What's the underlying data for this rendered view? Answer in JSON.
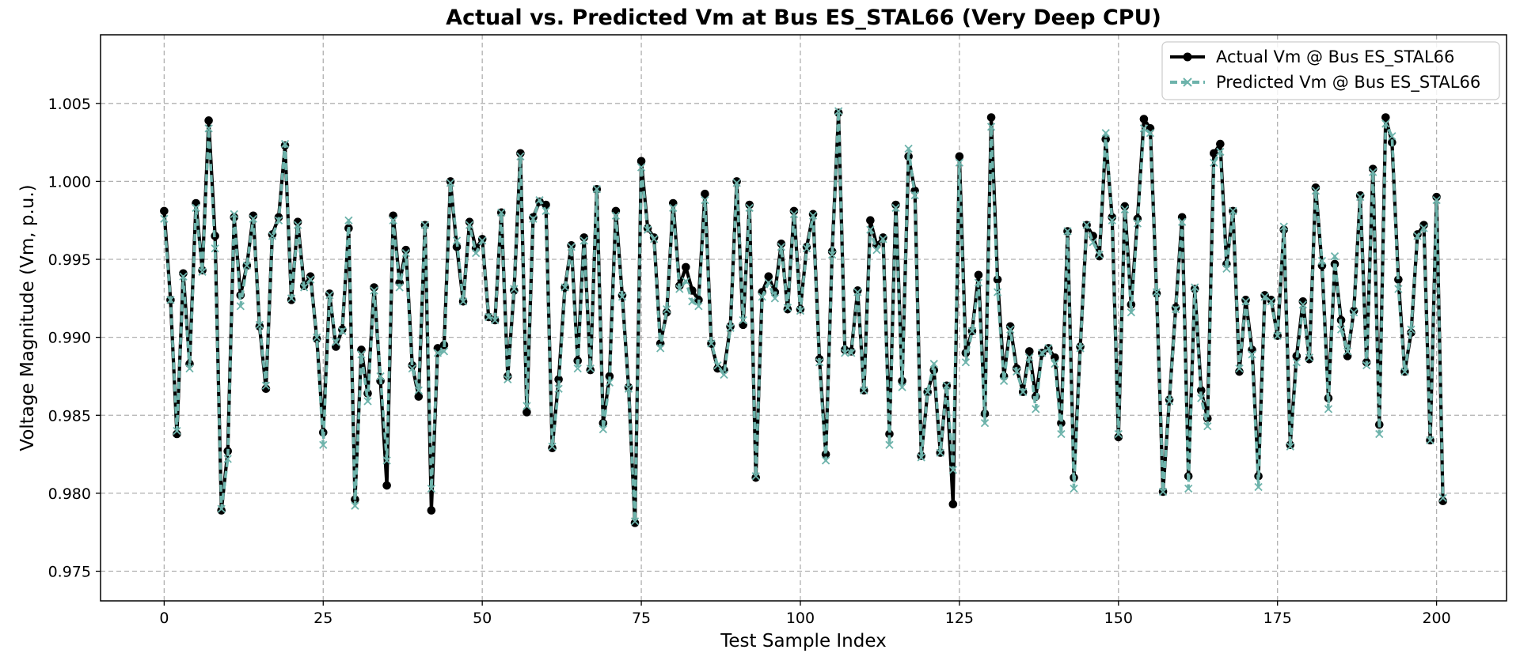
{
  "chart_data": {
    "type": "line",
    "title": "Actual vs. Predicted Vm at Bus ES_STAL66 (Very Deep CPU)",
    "xlabel": "Test Sample Index",
    "ylabel": "Voltage Magnitude (Vm, p.u.)",
    "xlim": [
      -10,
      211
    ],
    "ylim": [
      0.9731,
      1.0094
    ],
    "xticks": [
      0,
      25,
      50,
      75,
      100,
      125,
      150,
      175,
      200
    ],
    "yticks": [
      0.975,
      0.98,
      0.985,
      0.99,
      0.995,
      1.0,
      1.005
    ],
    "ytick_labels": [
      "0.975",
      "0.980",
      "0.985",
      "0.990",
      "0.995",
      "1.000",
      "1.005"
    ],
    "grid": true,
    "legend_position": "top-right",
    "series": [
      {
        "name": "Actual Vm @ Bus ES_STAL66",
        "color": "#000000",
        "marker": "circle",
        "values": [
          0.9981,
          0.9924,
          0.9838,
          0.9941,
          0.9883,
          0.9986,
          0.9943,
          1.0039,
          0.9965,
          0.9789,
          0.9827,
          0.9977,
          0.9927,
          0.9946,
          0.9978,
          0.9907,
          0.9867,
          0.9966,
          0.9977,
          1.0023,
          0.9924,
          0.9974,
          0.9933,
          0.9939,
          0.9899,
          0.9839,
          0.9928,
          0.9894,
          0.9905,
          0.997,
          0.9796,
          0.9892,
          0.9864,
          0.9932,
          0.9872,
          0.9805,
          0.9978,
          0.9935,
          0.9956,
          0.9882,
          0.9862,
          0.9972,
          0.9789,
          0.9893,
          0.9895,
          1.0,
          0.9958,
          0.9923,
          0.9974,
          0.9957,
          0.9963,
          0.9913,
          0.9911,
          0.998,
          0.9875,
          0.993,
          1.0018,
          0.9852,
          0.9977,
          0.9987,
          0.9985,
          0.9829,
          0.9873,
          0.9932,
          0.9959,
          0.9885,
          0.9964,
          0.9879,
          0.9995,
          0.9845,
          0.9875,
          0.9981,
          0.9927,
          0.9868,
          0.9781,
          1.0013,
          0.997,
          0.9964,
          0.9896,
          0.9916,
          0.9986,
          0.9933,
          0.9945,
          0.993,
          0.9924,
          0.9992,
          0.9896,
          0.988,
          0.9879,
          0.9907,
          1.0,
          0.9908,
          0.9985,
          0.981,
          0.9929,
          0.9939,
          0.9929,
          0.996,
          0.9918,
          0.9981,
          0.9918,
          0.9958,
          0.9979,
          0.9886,
          0.9825,
          0.9955,
          1.0044,
          0.9892,
          0.9891,
          0.993,
          0.9866,
          0.9975,
          0.9959,
          0.9964,
          0.9838,
          0.9985,
          0.9872,
          1.0016,
          0.9994,
          0.9824,
          0.9865,
          0.9879,
          0.9826,
          0.9869,
          0.9793,
          1.0016,
          0.989,
          0.9904,
          0.994,
          0.9851,
          1.0041,
          0.9937,
          0.9875,
          0.9907,
          0.988,
          0.9865,
          0.9891,
          0.9862,
          0.989,
          0.9893,
          0.9887,
          0.9845,
          0.9968,
          0.981,
          0.9894,
          0.9972,
          0.9965,
          0.9952,
          1.0027,
          0.9977,
          0.9836,
          0.9984,
          0.9921,
          0.9976,
          1.004,
          1.0034,
          0.9928,
          0.9801,
          0.986,
          0.9919,
          0.9977,
          0.9811,
          0.9931,
          0.9866,
          0.9848,
          1.0018,
          1.0024,
          0.9947,
          0.9981,
          0.9878,
          0.9924,
          0.9892,
          0.9811,
          0.9927,
          0.9924,
          0.9901,
          0.9969,
          0.9831,
          0.9888,
          0.9923,
          0.9886,
          0.9996,
          0.9946,
          0.9861,
          0.9947,
          0.9911,
          0.9888,
          0.9917,
          0.9991,
          0.9884,
          1.0008,
          0.9844,
          1.0041,
          1.0025,
          0.9937,
          0.9878,
          0.9903,
          0.9966,
          0.9972,
          0.9834,
          0.999,
          0.9795
        ]
      },
      {
        "name": "Predicted Vm @ Bus ES_STAL66",
        "color": "#6db3ab",
        "marker": "x",
        "values": [
          0.9976,
          0.9924,
          0.984,
          0.9939,
          0.988,
          0.9983,
          0.9942,
          1.0034,
          0.9957,
          0.979,
          0.9822,
          0.9979,
          0.992,
          0.9946,
          0.9976,
          0.9908,
          0.9869,
          0.9965,
          0.9975,
          1.0024,
          0.9925,
          0.9972,
          0.9932,
          0.9937,
          0.99,
          0.9831,
          0.9927,
          0.9897,
          0.9904,
          0.9975,
          0.9792,
          0.9889,
          0.9859,
          0.993,
          0.9875,
          0.9821,
          0.9975,
          0.9932,
          0.9954,
          0.988,
          0.9866,
          0.9972,
          0.9803,
          0.989,
          0.9891,
          0.9999,
          0.9962,
          0.9923,
          0.9972,
          0.9954,
          0.9962,
          0.9913,
          0.9911,
          0.998,
          0.9873,
          0.9931,
          1.0016,
          0.9856,
          0.9976,
          0.9988,
          0.9981,
          0.983,
          0.9867,
          0.9932,
          0.9958,
          0.988,
          0.9962,
          0.988,
          0.9995,
          0.9841,
          0.9871,
          0.9978,
          0.9926,
          0.9867,
          0.9782,
          1.0009,
          0.9969,
          0.9963,
          0.9893,
          0.9918,
          0.9983,
          0.9931,
          0.9936,
          0.9923,
          0.992,
          0.9988,
          0.9896,
          0.9882,
          0.9876,
          0.9906,
          0.9999,
          0.9911,
          0.9983,
          0.9811,
          0.9926,
          0.9935,
          0.9925,
          0.9958,
          0.9919,
          0.9979,
          0.9917,
          0.9957,
          0.9978,
          0.9884,
          0.9821,
          0.9953,
          1.0045,
          0.989,
          0.989,
          0.9929,
          0.9866,
          0.9969,
          0.9956,
          0.9963,
          0.9831,
          0.9983,
          0.9868,
          1.0021,
          0.9991,
          0.9823,
          0.9865,
          0.9883,
          0.9826,
          0.9869,
          0.9815,
          1.0012,
          0.9884,
          0.9904,
          0.9935,
          0.9845,
          1.0035,
          0.9929,
          0.9872,
          0.9905,
          0.9878,
          0.9865,
          0.9887,
          0.9854,
          0.989,
          0.9893,
          0.9883,
          0.9838,
          0.9968,
          0.9803,
          0.9893,
          0.9972,
          0.9961,
          0.9953,
          1.0031,
          0.9975,
          0.9838,
          0.9982,
          0.9916,
          0.9973,
          1.0034,
          1.0031,
          0.9929,
          0.9801,
          0.9859,
          0.9918,
          0.9974,
          0.9803,
          0.9932,
          0.9861,
          0.9843,
          1.0012,
          1.0019,
          0.9944,
          0.9981,
          0.988,
          0.9923,
          0.9889,
          0.9804,
          0.9926,
          0.9923,
          0.9901,
          0.9971,
          0.983,
          0.9884,
          0.9921,
          0.9887,
          0.9994,
          0.9949,
          0.9854,
          0.9952,
          0.9905,
          0.9891,
          0.9916,
          0.999,
          0.9882,
          1.0006,
          0.9838,
          1.0037,
          1.0029,
          0.9931,
          0.9878,
          0.9905,
          0.9965,
          0.997,
          0.9834,
          0.9988,
          0.9797
        ]
      }
    ]
  }
}
